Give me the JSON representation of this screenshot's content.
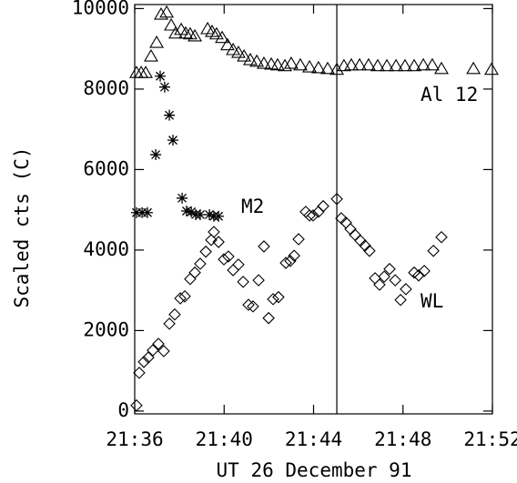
{
  "chart_data": {
    "type": "scatter",
    "x_label": "UT 26 December 91",
    "y_label": "Scaled cts (C)",
    "xlim": [
      36,
      52
    ],
    "xticks": [
      {
        "value": 36,
        "label": "21:36"
      },
      {
        "value": 40,
        "label": "21:40"
      },
      {
        "value": 44,
        "label": "21:44"
      },
      {
        "value": 48,
        "label": "21:48"
      },
      {
        "value": 52,
        "label": "21:52"
      }
    ],
    "ylim": [
      -70,
      10100
    ],
    "yticks": [
      0,
      2000,
      4000,
      6000,
      8000,
      10000
    ],
    "vline": 45.04,
    "series": [
      {
        "name": "Al 12",
        "marker": "triangle",
        "color": "#000000",
        "x": [
          36.08,
          36.29,
          36.49,
          36.73,
          36.98,
          37.18,
          37.43,
          37.63,
          37.83,
          38.08,
          38.28,
          38.48,
          38.69,
          39.26,
          39.46,
          39.66,
          39.91,
          40.15,
          40.4,
          40.64,
          40.89,
          41.17,
          41.46,
          41.78,
          42.11,
          42.39,
          42.72,
          43.0,
          43.41,
          43.82,
          44.22,
          44.63,
          45.04,
          45.36,
          45.69,
          46.06,
          46.46,
          46.87,
          47.28,
          47.69,
          48.09,
          48.5,
          48.91,
          49.31,
          49.72,
          51.15,
          51.96
        ],
        "values": [
          8400,
          8400,
          8400,
          8810,
          9150,
          9850,
          9900,
          9580,
          9380,
          9470,
          9380,
          9360,
          9310,
          9490,
          9420,
          9360,
          9270,
          9090,
          8970,
          8900,
          8810,
          8720,
          8680,
          8630,
          8610,
          8590,
          8570,
          8630,
          8590,
          8540,
          8520,
          8500,
          8480,
          8570,
          8590,
          8590,
          8590,
          8570,
          8570,
          8570,
          8570,
          8570,
          8590,
          8590,
          8500,
          8500,
          8480
        ]
      },
      {
        "name": "M2",
        "marker": "asterisk",
        "color": "#000000",
        "x": [
          36.08,
          36.33,
          36.57,
          36.94,
          37.14,
          37.34,
          37.55,
          37.71,
          38.12,
          38.32,
          38.53,
          38.73,
          38.93,
          39.34,
          39.54,
          39.75
        ],
        "values": [
          4930,
          4930,
          4930,
          6370,
          8320,
          8050,
          7350,
          6730,
          5290,
          4970,
          4950,
          4880,
          4880,
          4880,
          4840,
          4840
        ]
      },
      {
        "name": "WL",
        "marker": "diamond",
        "color": "#000000",
        "x": [
          36.08,
          36.2,
          36.41,
          36.61,
          36.81,
          37.06,
          37.3,
          37.55,
          37.79,
          38.04,
          38.24,
          38.48,
          38.69,
          38.93,
          39.18,
          39.42,
          39.54,
          39.75,
          39.99,
          40.19,
          40.4,
          40.64,
          40.85,
          41.09,
          41.29,
          41.54,
          41.78,
          41.99,
          42.19,
          42.43,
          42.76,
          42.96,
          43.13,
          43.33,
          43.65,
          43.82,
          43.98,
          44.22,
          44.43,
          45.04,
          45.24,
          45.45,
          45.65,
          45.85,
          46.1,
          46.3,
          46.5,
          46.75,
          46.95,
          47.16,
          47.4,
          47.65,
          47.89,
          48.13,
          48.5,
          48.7,
          48.95,
          49.36,
          49.72
        ],
        "values": [
          140,
          950,
          1220,
          1330,
          1510,
          1670,
          1490,
          2170,
          2400,
          2800,
          2850,
          3280,
          3440,
          3660,
          3960,
          4250,
          4450,
          4200,
          3770,
          3840,
          3500,
          3640,
          3210,
          2640,
          2600,
          3250,
          4090,
          2310,
          2780,
          2830,
          3680,
          3730,
          3860,
          4270,
          4950,
          4860,
          4860,
          4950,
          5090,
          5270,
          4790,
          4680,
          4520,
          4380,
          4230,
          4110,
          3980,
          3300,
          3140,
          3340,
          3530,
          3250,
          2760,
          3030,
          3440,
          3370,
          3480,
          3980,
          4320
        ]
      }
    ]
  }
}
